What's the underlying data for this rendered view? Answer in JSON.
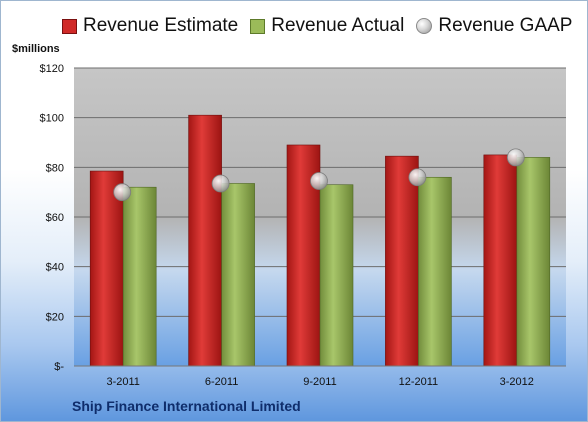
{
  "legend": {
    "estimate": "Revenue Estimate",
    "actual": "Revenue Actual",
    "gaap": "Revenue GAAP"
  },
  "unit_label": "$millions",
  "company": "Ship Finance International Limited",
  "colors": {
    "estimate": "#d02a28",
    "actual": "#9bbb59",
    "gaap": "#c8c8c8"
  },
  "chart_data": {
    "type": "bar",
    "categories": [
      "3-2011",
      "6-2011",
      "9-2011",
      "12-2011",
      "3-2012"
    ],
    "series": [
      {
        "name": "Revenue Estimate",
        "values": [
          78.5,
          101,
          89,
          84.5,
          85
        ]
      },
      {
        "name": "Revenue Actual",
        "values": [
          72,
          73.5,
          73,
          76,
          84
        ]
      },
      {
        "name": "Revenue GAAP",
        "type": "scatter",
        "values": [
          70,
          73.5,
          74.5,
          76,
          84
        ]
      }
    ],
    "ylim": [
      0,
      120
    ],
    "yticks": [
      0,
      20,
      40,
      60,
      80,
      100,
      120
    ],
    "ytick_labels": [
      "$-",
      "$20",
      "$40",
      "$60",
      "$80",
      "$100",
      "$120"
    ],
    "ylabel": "$millions",
    "grid": true,
    "legend_position": "top"
  }
}
